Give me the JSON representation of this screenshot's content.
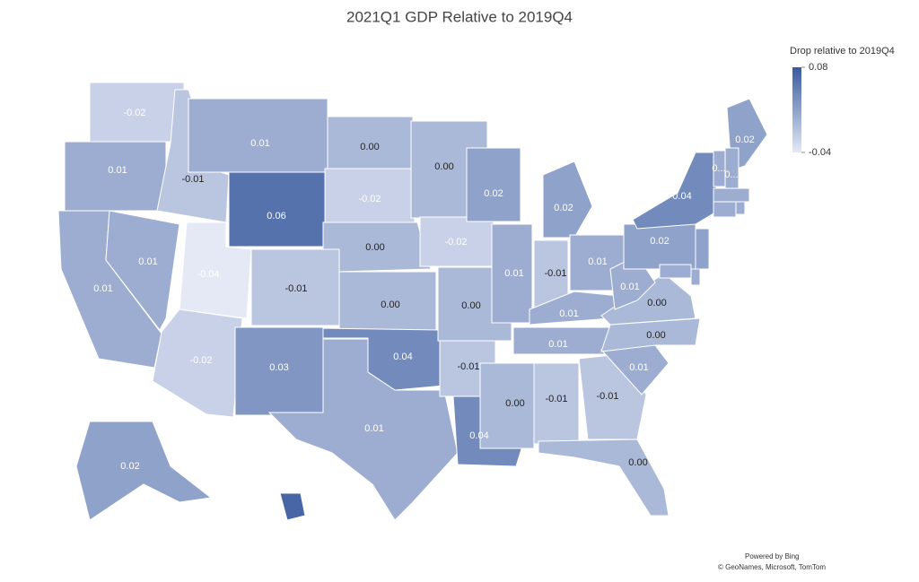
{
  "chart_data": {
    "type": "choropleth",
    "title": "2021Q1 GDP Relative to 2019Q4",
    "legend_title": "Drop relative to 2019Q4",
    "colorlim": [
      -0.04,
      0.08
    ],
    "colorticks": [
      0.08,
      -0.04
    ],
    "min_color": "#e4e9f5",
    "max_color": "#3a5a9f",
    "values": [
      -0.02,
      0.01,
      0.01,
      0.01,
      -0.01,
      0.01,
      0.06,
      -0.04,
      -0.01,
      -0.02,
      0.03,
      0.0,
      -0.02,
      0.0,
      0.0,
      0.04,
      0.01,
      0.0,
      -0.02,
      0.0,
      -0.01,
      0.04,
      0.02,
      0.01,
      0.02,
      -0.01,
      0.01,
      0.01,
      0.01,
      0.0,
      -0.01,
      -0.01,
      0.0,
      0.01,
      0.0,
      0.0,
      0.01,
      0.02,
      0.04,
      0.02,
      0.01,
      0.01,
      0.01,
      0.01,
      0.01,
      0.02,
      0.01,
      0.01,
      0.02,
      0.07
    ],
    "value_labels": [
      "-0.02",
      "0.01",
      "0.01",
      "0.01",
      "-0.01",
      "0.01",
      "0.06",
      "-0.04",
      "-0.01",
      "-0.02",
      "0.03",
      "0.00",
      "-0.02",
      "0.00",
      "0.00",
      "0.04",
      "0.01",
      "0.00",
      "-0.02",
      "0.00",
      "-0.01",
      "0.04",
      "0.02",
      "0.01",
      "0.02",
      "-0.01",
      "0.01",
      "0.01",
      "0.01",
      "0.00",
      "-0.01",
      "-0.01",
      "0.00",
      "0.01",
      "0.00",
      "0.00",
      "0.01",
      "0.02",
      "0.04",
      "0.02",
      "0...",
      "0...",
      null,
      null,
      null,
      null,
      null,
      null,
      "0.02",
      null
    ],
    "attribution": [
      "Powered by Bing",
      "© GeoNames, Microsoft, TomTom"
    ]
  }
}
